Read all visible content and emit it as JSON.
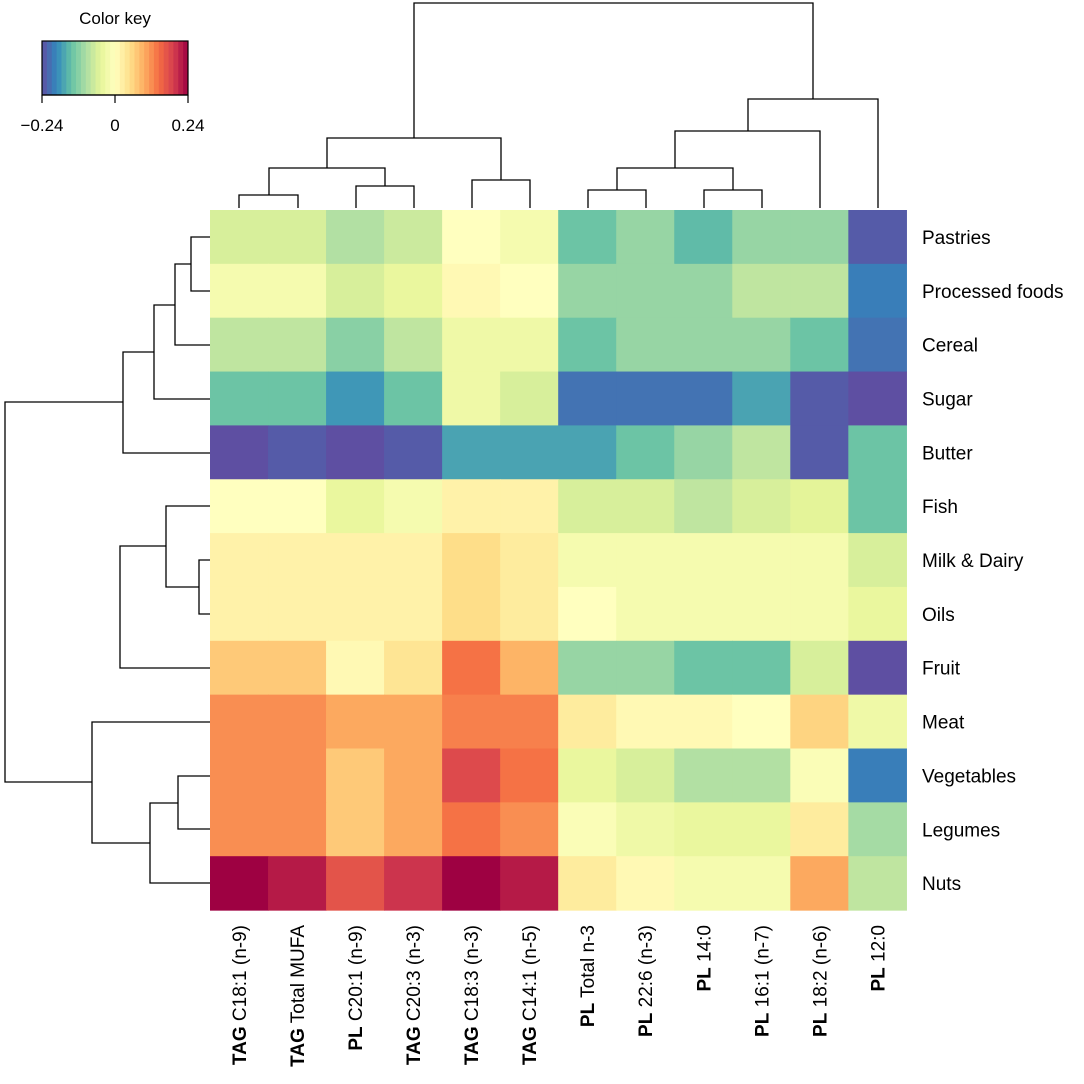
{
  "chart_data": {
    "type": "heatmap",
    "title": "",
    "color_key": {
      "title": "Color key",
      "min": -0.24,
      "max": 0.24,
      "tick_labels": [
        "−0.24",
        "0",
        "0.24"
      ],
      "palette": "Spectral (reversed): blue = negative, yellow = 0, dark red = positive"
    },
    "columns": [
      {
        "prefix": "TAG",
        "name": "C18:1 (n-9)"
      },
      {
        "prefix": "TAG",
        "name": "Total MUFA"
      },
      {
        "prefix": "PL",
        "name": "C20:1 (n-9)"
      },
      {
        "prefix": "TAG",
        "name": "C20:3 (n-3)"
      },
      {
        "prefix": "TAG",
        "name": "C18:3 (n-3)"
      },
      {
        "prefix": "TAG",
        "name": "C14:1 (n-5)"
      },
      {
        "prefix": "PL",
        "name": "Total n-3"
      },
      {
        "prefix": "PL",
        "name": "22:6 (n-3)"
      },
      {
        "prefix": "PL",
        "name": "14:0"
      },
      {
        "prefix": "PL",
        "name": "16:1 (n-7)"
      },
      {
        "prefix": "PL",
        "name": "18:2 (n-6)"
      },
      {
        "prefix": "PL",
        "name": "12:0"
      }
    ],
    "rows": [
      "Pastries",
      "Processed foods",
      "Cereal",
      "Sugar",
      "Butter",
      "Fish",
      "Milk & Dairy",
      "Oils",
      "Fruit",
      "Meat",
      "Vegetables",
      "Legumes",
      "Nuts"
    ],
    "values": [
      [
        -0.06,
        -0.06,
        -0.09,
        -0.07,
        0.0,
        -0.02,
        -0.14,
        -0.11,
        -0.15,
        -0.11,
        -0.11,
        -0.23
      ],
      [
        -0.02,
        -0.02,
        -0.06,
        -0.04,
        0.01,
        0.0,
        -0.11,
        -0.11,
        -0.11,
        -0.08,
        -0.08,
        -0.2
      ],
      [
        -0.08,
        -0.08,
        -0.12,
        -0.08,
        -0.03,
        -0.03,
        -0.14,
        -0.11,
        -0.11,
        -0.11,
        -0.14,
        -0.21
      ],
      [
        -0.14,
        -0.14,
        -0.18,
        -0.14,
        -0.03,
        -0.06,
        -0.21,
        -0.21,
        -0.21,
        -0.17,
        -0.23,
        -0.27
      ],
      [
        -0.26,
        -0.23,
        -0.26,
        -0.23,
        -0.17,
        -0.17,
        -0.17,
        -0.14,
        -0.11,
        -0.08,
        -0.23,
        -0.14
      ],
      [
        0.0,
        0.0,
        -0.04,
        -0.02,
        0.02,
        0.02,
        -0.06,
        -0.06,
        -0.08,
        -0.06,
        -0.05,
        -0.14
      ],
      [
        0.02,
        0.02,
        0.02,
        0.02,
        0.05,
        0.03,
        -0.02,
        -0.02,
        -0.02,
        -0.02,
        -0.02,
        -0.06
      ],
      [
        0.02,
        0.02,
        0.02,
        0.02,
        0.05,
        0.03,
        0.0,
        -0.02,
        -0.02,
        -0.02,
        -0.02,
        -0.04
      ],
      [
        0.07,
        0.07,
        0.01,
        0.04,
        0.14,
        0.09,
        -0.11,
        -0.11,
        -0.14,
        -0.14,
        -0.06,
        -0.26
      ],
      [
        0.12,
        0.12,
        0.1,
        0.1,
        0.13,
        0.13,
        0.03,
        0.01,
        0.01,
        0.0,
        0.06,
        -0.03
      ],
      [
        0.12,
        0.12,
        0.07,
        0.1,
        0.18,
        0.14,
        -0.04,
        -0.06,
        -0.09,
        -0.09,
        -0.01,
        -0.2
      ],
      [
        0.12,
        0.12,
        0.07,
        0.1,
        0.14,
        0.12,
        -0.01,
        -0.03,
        -0.04,
        -0.04,
        0.03,
        -0.1
      ],
      [
        0.25,
        0.22,
        0.17,
        0.2,
        0.27,
        0.22,
        0.03,
        0.01,
        -0.02,
        -0.02,
        0.1,
        -0.08
      ]
    ],
    "row_dendrogram": "hierarchical clustering tree drawn at left",
    "column_dendrogram": "hierarchical clustering tree drawn at top"
  }
}
